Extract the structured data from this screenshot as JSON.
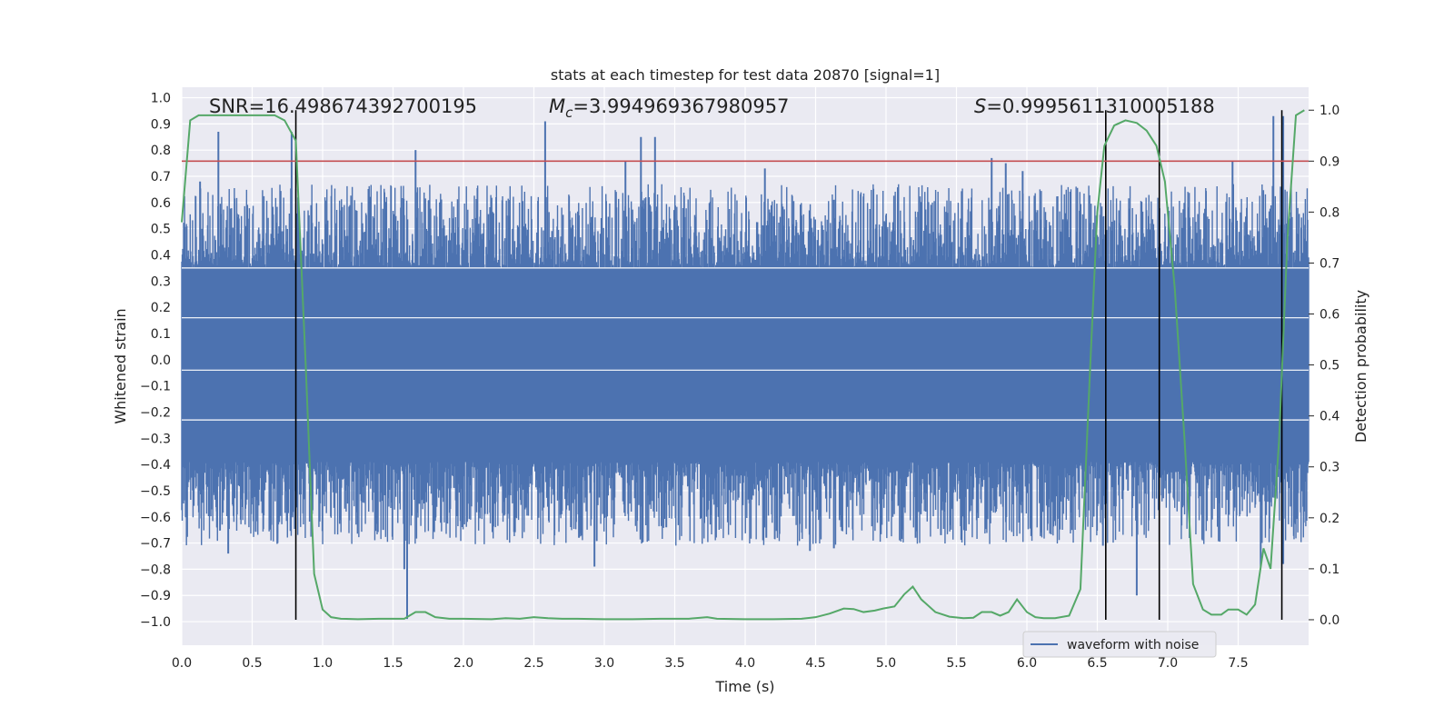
{
  "chart_data": {
    "type": "line",
    "title": "stats at each timestep for test data 20870 [signal=1]",
    "xlabel": "Time (s)",
    "ylabel": "Whitened strain",
    "y2label": "Detection probability",
    "xlim": [
      0.0,
      8.0
    ],
    "ylim": [
      -1.09,
      1.04
    ],
    "y2lim": [
      -0.05,
      1.045
    ],
    "xticks": [
      "0.0",
      "0.5",
      "1.0",
      "1.5",
      "2.0",
      "2.5",
      "3.0",
      "3.5",
      "4.0",
      "4.5",
      "5.0",
      "5.5",
      "6.0",
      "6.5",
      "7.0",
      "7.5"
    ],
    "yticks": [
      "1.0",
      "0.9",
      "0.8",
      "0.7",
      "0.6",
      "0.5",
      "0.4",
      "0.3",
      "0.2",
      "0.1",
      "0.0",
      "−0.1",
      "−0.2",
      "−0.3",
      "−0.4",
      "−0.5",
      "−0.6",
      "−0.7",
      "−0.8",
      "−0.9",
      "−1.0"
    ],
    "y2ticks": [
      "1.0",
      "0.9",
      "0.8",
      "0.7",
      "0.6",
      "0.5",
      "0.4",
      "0.3",
      "0.2",
      "0.1",
      "0.0"
    ],
    "annotations": {
      "snr": "SNR=16.498674392700195",
      "mc_symbol": "M",
      "mc_sub": "c",
      "mc_value": "=3.994969367980957",
      "s_symbol": "S",
      "s_value": "=0.9995611310005188"
    },
    "legend": {
      "label": "waveform with noise",
      "location": "lower-right"
    },
    "threshold": {
      "axis": "right",
      "value": 0.9,
      "color": "#c44e52"
    },
    "vertical_lines": [
      0.81,
      6.56,
      6.94,
      7.81
    ],
    "waveform": {
      "name": "waveform with noise",
      "color": "#4c72b0",
      "core_amplitude": 0.35,
      "spikes": [
        {
          "x": 0.26,
          "y": 0.87
        },
        {
          "x": 0.13,
          "y": 0.68
        },
        {
          "x": 0.78,
          "y": 0.87
        },
        {
          "x": 1.66,
          "y": 0.8
        },
        {
          "x": 2.58,
          "y": 0.91
        },
        {
          "x": 3.15,
          "y": 0.76
        },
        {
          "x": 3.26,
          "y": 0.85
        },
        {
          "x": 3.36,
          "y": 0.85
        },
        {
          "x": 4.14,
          "y": 0.73
        },
        {
          "x": 5.75,
          "y": 0.77
        },
        {
          "x": 5.85,
          "y": 0.75
        },
        {
          "x": 5.97,
          "y": 0.72
        },
        {
          "x": 7.46,
          "y": 0.76
        },
        {
          "x": 7.75,
          "y": 0.93
        },
        {
          "x": 7.82,
          "y": 0.93
        },
        {
          "x": 0.33,
          "y": -0.74
        },
        {
          "x": 0.68,
          "y": -0.7
        },
        {
          "x": 1.43,
          "y": -0.65
        },
        {
          "x": 1.58,
          "y": -0.8
        },
        {
          "x": 1.6,
          "y": -0.99
        },
        {
          "x": 2.93,
          "y": -0.79
        },
        {
          "x": 2.82,
          "y": -0.68
        },
        {
          "x": 3.44,
          "y": -0.64
        },
        {
          "x": 4.15,
          "y": -0.68
        },
        {
          "x": 4.46,
          "y": -0.73
        },
        {
          "x": 4.63,
          "y": -0.72
        },
        {
          "x": 5.21,
          "y": -0.68
        },
        {
          "x": 5.39,
          "y": -0.67
        },
        {
          "x": 6.78,
          "y": -0.9
        },
        {
          "x": 7.82,
          "y": -0.78
        },
        {
          "x": 7.66,
          "y": -0.79
        },
        {
          "x": 0.25,
          "y": -0.64
        },
        {
          "x": 6.54,
          "y": -0.71
        }
      ]
    },
    "probability": {
      "color": "#55a868",
      "x": [
        0.0,
        0.06,
        0.12,
        0.2,
        0.3,
        0.4,
        0.5,
        0.6,
        0.66,
        0.73,
        0.81,
        0.88,
        0.94,
        1.0,
        1.06,
        1.13,
        1.25,
        1.4,
        1.5,
        1.58,
        1.66,
        1.73,
        1.8,
        1.9,
        2.0,
        2.2,
        2.3,
        2.4,
        2.5,
        2.6,
        2.7,
        2.8,
        3.0,
        3.2,
        3.4,
        3.6,
        3.73,
        3.8,
        4.0,
        4.2,
        4.4,
        4.5,
        4.6,
        4.7,
        4.77,
        4.84,
        4.92,
        4.98,
        5.06,
        5.13,
        5.19,
        5.25,
        5.35,
        5.45,
        5.55,
        5.62,
        5.68,
        5.75,
        5.81,
        5.87,
        5.93,
        6.0,
        6.06,
        6.12,
        6.2,
        6.3,
        6.38,
        6.45,
        6.5,
        6.55,
        6.62,
        6.7,
        6.78,
        6.85,
        6.92,
        6.98,
        7.05,
        7.12,
        7.18,
        7.25,
        7.31,
        7.38,
        7.43,
        7.5,
        7.56,
        7.62,
        7.68,
        7.73,
        7.79,
        7.85,
        7.91,
        7.97
      ],
      "y": [
        0.78,
        0.98,
        0.99,
        0.99,
        0.99,
        0.99,
        0.99,
        0.99,
        0.99,
        0.98,
        0.94,
        0.5,
        0.09,
        0.02,
        0.005,
        0.002,
        0.001,
        0.002,
        0.002,
        0.002,
        0.015,
        0.015,
        0.005,
        0.002,
        0.002,
        0.001,
        0.003,
        0.002,
        0.005,
        0.003,
        0.002,
        0.002,
        0.001,
        0.001,
        0.002,
        0.002,
        0.005,
        0.002,
        0.001,
        0.001,
        0.002,
        0.005,
        0.012,
        0.022,
        0.021,
        0.015,
        0.018,
        0.022,
        0.026,
        0.05,
        0.065,
        0.04,
        0.015,
        0.006,
        0.003,
        0.004,
        0.015,
        0.015,
        0.008,
        0.015,
        0.04,
        0.015,
        0.005,
        0.003,
        0.003,
        0.008,
        0.06,
        0.5,
        0.8,
        0.93,
        0.97,
        0.98,
        0.975,
        0.96,
        0.93,
        0.86,
        0.65,
        0.35,
        0.07,
        0.02,
        0.01,
        0.01,
        0.02,
        0.02,
        0.01,
        0.03,
        0.14,
        0.1,
        0.35,
        0.75,
        0.99,
        1.0
      ]
    }
  }
}
